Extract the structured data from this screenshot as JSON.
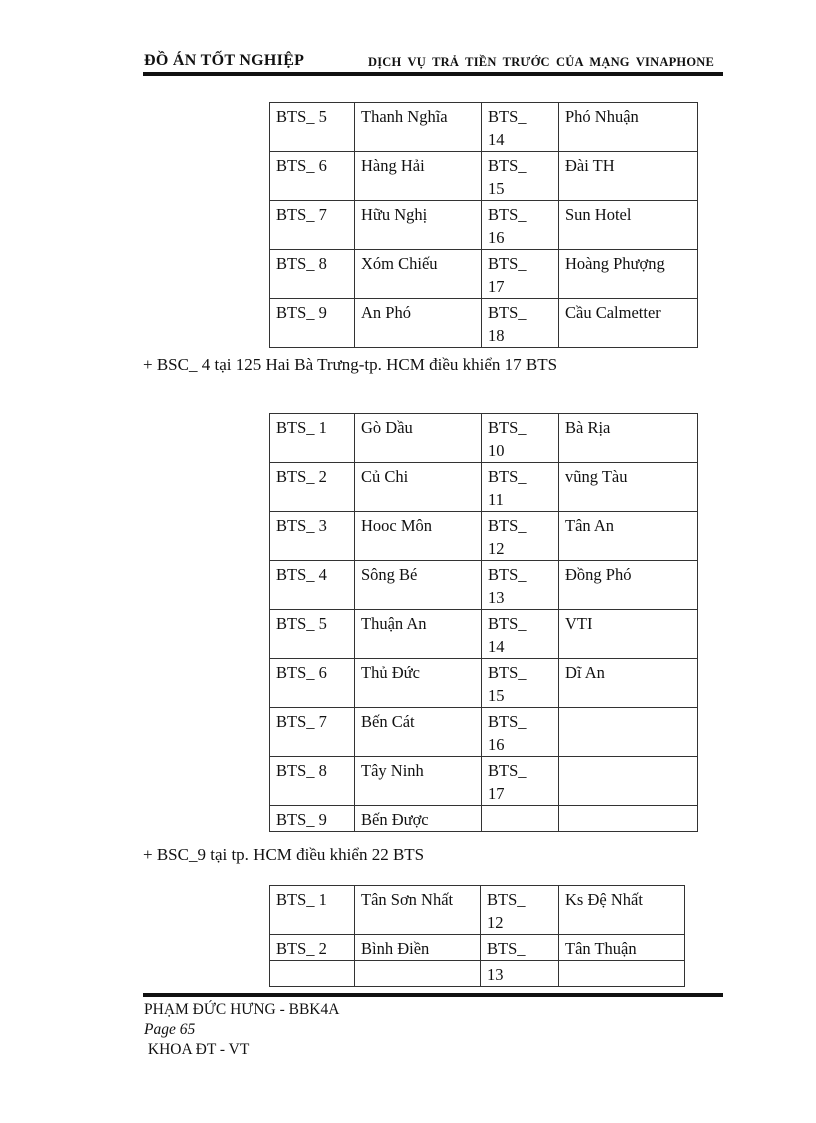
{
  "header": {
    "left": "ĐỒ ÁN TỐT NGHIỆP",
    "right": "DỊCH VỤ TRẢ TIỀN TRƯỚC CỦA MẠNG VINAPHONE"
  },
  "table1": {
    "rows": [
      [
        "BTS_ 5",
        "Thanh Nghĩa",
        "BTS_\n14",
        "Phó Nhuận"
      ],
      [
        "BTS_ 6",
        "Hàng Hải",
        "BTS_\n15",
        "Đài TH"
      ],
      [
        "BTS_ 7",
        "Hữu Nghị",
        "BTS_\n16",
        "Sun Hotel"
      ],
      [
        "BTS_ 8",
        "Xóm Chiếu",
        "BTS_\n17",
        "Hoàng Phượng"
      ],
      [
        "BTS_ 9",
        "An Phó",
        "BTS_\n18",
        "Cầu Calmetter"
      ]
    ]
  },
  "para1": "+ BSC_ 4 tại 125 Hai Bà Trưng-tp. HCM điều khiển 17 BTS",
  "table2": {
    "rows": [
      [
        "BTS_ 1",
        "Gò Dầu",
        "BTS_\n10",
        "Bà Rịa"
      ],
      [
        "BTS_ 2",
        "Củ Chi",
        "BTS_\n11",
        "vũng Tàu"
      ],
      [
        "BTS_ 3",
        "Hooc Môn",
        "BTS_\n12",
        "Tân An"
      ],
      [
        "BTS_ 4",
        "Sông Bé",
        "BTS_\n13",
        "Đồng Phó"
      ],
      [
        "BTS_ 5",
        "Thuận An",
        "BTS_\n14",
        "VTI"
      ],
      [
        "BTS_ 6",
        "Thủ Đức",
        "BTS_\n15",
        "Dĩ An"
      ],
      [
        "BTS_ 7",
        "Bến Cát",
        "BTS_\n16",
        ""
      ],
      [
        "BTS_ 8",
        "Tây Ninh",
        "BTS_\n17",
        ""
      ],
      [
        "BTS_ 9",
        "Bến Được",
        "",
        ""
      ]
    ]
  },
  "para2": "+ BSC_9 tại tp. HCM điều khiển 22 BTS",
  "table3": {
    "rows": [
      [
        "BTS_ 1",
        "Tân Sơn Nhất",
        "BTS_\n12",
        "Ks Đệ Nhất"
      ],
      [
        "BTS_ 2",
        "Bình Điền",
        "BTS_",
        "Tân Thuận"
      ],
      [
        "",
        "",
        "13",
        ""
      ]
    ]
  },
  "footer": {
    "author": "PHẠM ĐỨC HƯNG - BBK4A",
    "page": "Page  65",
    "dept": " KHOA ĐT - VT"
  }
}
